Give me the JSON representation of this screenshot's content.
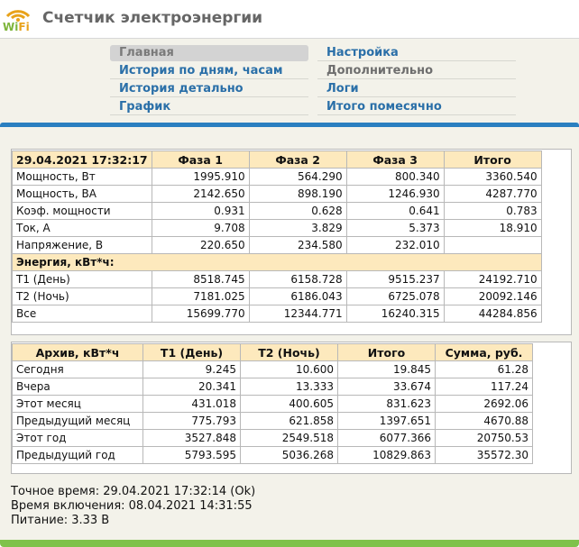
{
  "header": {
    "title": "Счетчик электроэнергии",
    "logo_text": "WiFi"
  },
  "nav": {
    "left": [
      "Главная",
      "История по дням, часам",
      "История детально",
      "График"
    ],
    "right": [
      "Настройка",
      "Дополнительно",
      "Логи",
      "Итого помесячно"
    ]
  },
  "phases": {
    "headers": [
      "29.04.2021 17:32:17",
      "Фаза 1",
      "Фаза 2",
      "Фаза 3",
      "Итого"
    ],
    "rows": [
      [
        "Мощность, Вт",
        "1995.910",
        "564.290",
        "800.340",
        "3360.540"
      ],
      [
        "Мощность, ВА",
        "2142.650",
        "898.190",
        "1246.930",
        "4287.770"
      ],
      [
        "Коэф. мощности",
        "0.931",
        "0.628",
        "0.641",
        "0.783"
      ],
      [
        "Ток, А",
        "9.708",
        "3.829",
        "5.373",
        "18.910"
      ],
      [
        "Напряжение, В",
        "220.650",
        "234.580",
        "232.010",
        ""
      ]
    ],
    "energy_title": "Энергия, кВт*ч:",
    "energy_rows": [
      [
        "Т1 (День)",
        "8518.745",
        "6158.728",
        "9515.237",
        "24192.710"
      ],
      [
        "Т2 (Ночь)",
        "7181.025",
        "6186.043",
        "6725.078",
        "20092.146"
      ],
      [
        "Все",
        "15699.770",
        "12344.771",
        "16240.315",
        "44284.856"
      ]
    ]
  },
  "archive": {
    "headers": [
      "Архив, кВт*ч",
      "Т1 (День)",
      "Т2 (Ночь)",
      "Итого",
      "Сумма, руб."
    ],
    "rows": [
      [
        "Сегодня",
        "9.245",
        "10.600",
        "19.845",
        "61.28"
      ],
      [
        "Вчера",
        "20.341",
        "13.333",
        "33.674",
        "117.24"
      ],
      [
        "Этот месяц",
        "431.018",
        "400.605",
        "831.623",
        "2692.06"
      ],
      [
        "Предыдущий месяц",
        "775.793",
        "621.858",
        "1397.651",
        "4670.88"
      ],
      [
        "Этот год",
        "3527.848",
        "2549.518",
        "6077.366",
        "20750.53"
      ],
      [
        "Предыдущий год",
        "5793.595",
        "5036.268",
        "10829.863",
        "35572.30"
      ]
    ]
  },
  "info": {
    "time": "Точное время: 29.04.2021 17:32:14 (Ok)",
    "uptime": "Время включения: 08.04.2021 14:31:55",
    "power": "Питание: 3.33 В"
  },
  "colors": {
    "accent_blue": "#2a7fc0",
    "accent_green": "#7fc24a",
    "header_cell": "#fde9bd",
    "link": "#2a6fa8"
  }
}
